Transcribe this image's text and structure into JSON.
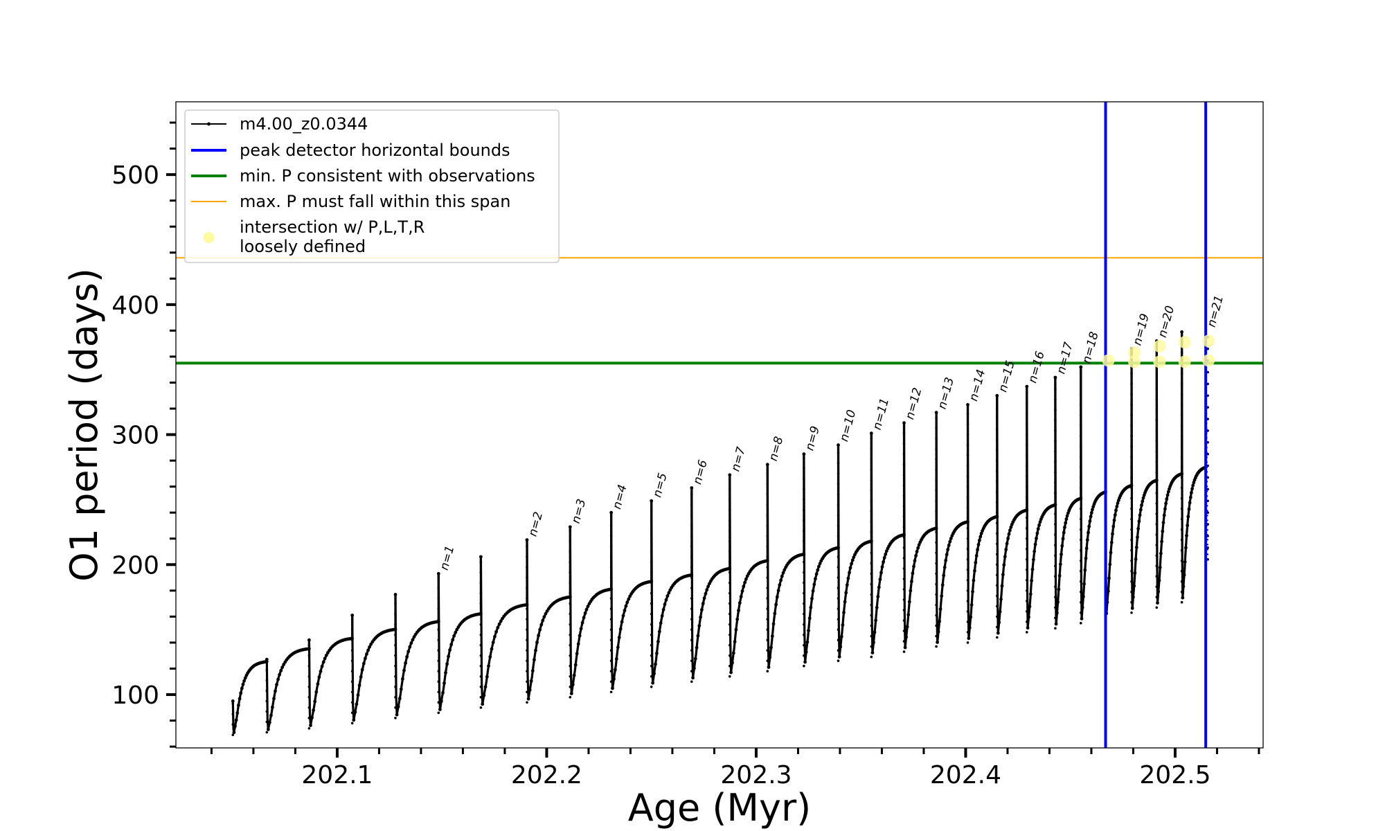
{
  "chart_data": {
    "type": "line",
    "xlabel": "Age (Myr)",
    "ylabel": "O1 period (days)",
    "xlim": [
      202.023,
      202.542
    ],
    "ylim": [
      59,
      556
    ],
    "xticks": [
      {
        "value": 202.1,
        "label": "202.1"
      },
      {
        "value": 202.2,
        "label": "202.2"
      },
      {
        "value": 202.3,
        "label": "202.3"
      },
      {
        "value": 202.4,
        "label": "202.4"
      },
      {
        "value": 202.5,
        "label": "202.5"
      }
    ],
    "x_minor_step": 0.02,
    "yticks": [
      {
        "value": 100,
        "label": "100"
      },
      {
        "value": 200,
        "label": "200"
      },
      {
        "value": 300,
        "label": "300"
      },
      {
        "value": 400,
        "label": "400"
      },
      {
        "value": 500,
        "label": "500"
      }
    ],
    "y_minor_step": 20,
    "grid": false,
    "legend_position": "top-left",
    "series_color": "#000000",
    "legend": [
      {
        "label": "m4.00_z0.0344",
        "style": "line-marker",
        "color": "#000000"
      },
      {
        "label": "peak detector horizontal bounds",
        "style": "line",
        "color": "#0000ff"
      },
      {
        "label": "min. P consistent with observations",
        "style": "line",
        "color": "#008000"
      },
      {
        "label": "max. P must fall within this span",
        "style": "thin-line",
        "color": "#ffa500"
      },
      {
        "label": "intersection w/ P,L,T,R",
        "label2": "loosely defined",
        "style": "dot",
        "color": "#fffaa0"
      }
    ],
    "cycles": [
      {
        "start": 202.0502,
        "end": 202.0664,
        "trough": 69,
        "plateau": 126,
        "spike": 95
      },
      {
        "start": 202.0664,
        "end": 202.0866,
        "trough": 71,
        "plateau": 136,
        "spike": 127
      },
      {
        "start": 202.0866,
        "end": 202.1072,
        "trough": 74,
        "plateau": 144,
        "spike": 142
      },
      {
        "start": 202.1072,
        "end": 202.1278,
        "trough": 78,
        "plateau": 151,
        "spike": 161
      },
      {
        "start": 202.1278,
        "end": 202.1484,
        "trough": 82,
        "plateau": 157,
        "spike": 177
      },
      {
        "start": 202.1484,
        "end": 202.1686,
        "trough": 86,
        "plateau": 163,
        "spike": 193,
        "label": "n=1"
      },
      {
        "start": 202.1686,
        "end": 202.1906,
        "trough": 90,
        "plateau": 170,
        "spike": 206
      },
      {
        "start": 202.1906,
        "end": 202.2112,
        "trough": 94,
        "plateau": 176,
        "spike": 219,
        "label": "n=2"
      },
      {
        "start": 202.2112,
        "end": 202.2308,
        "trough": 98,
        "plateau": 182,
        "spike": 229,
        "label": "n=3"
      },
      {
        "start": 202.2308,
        "end": 202.25,
        "trough": 102,
        "plateau": 188,
        "spike": 240,
        "label": "n=4"
      },
      {
        "start": 202.25,
        "end": 202.2692,
        "trough": 106,
        "plateau": 193,
        "spike": 249,
        "label": "n=5"
      },
      {
        "start": 202.2692,
        "end": 202.2874,
        "trough": 110,
        "plateau": 198,
        "spike": 259,
        "label": "n=6"
      },
      {
        "start": 202.2874,
        "end": 202.3054,
        "trough": 114,
        "plateau": 204,
        "spike": 269,
        "label": "n=7"
      },
      {
        "start": 202.3054,
        "end": 202.3228,
        "trough": 118,
        "plateau": 209,
        "spike": 277,
        "label": "n=8"
      },
      {
        "start": 202.3228,
        "end": 202.3392,
        "trough": 122,
        "plateau": 214,
        "spike": 285,
        "label": "n=9"
      },
      {
        "start": 202.3392,
        "end": 202.355,
        "trough": 126,
        "plateau": 219,
        "spike": 292,
        "label": "n=10"
      },
      {
        "start": 202.355,
        "end": 202.3706,
        "trough": 129,
        "plateau": 224,
        "spike": 301,
        "label": "n=11"
      },
      {
        "start": 202.3706,
        "end": 202.386,
        "trough": 133,
        "plateau": 229,
        "spike": 309,
        "label": "n=12"
      },
      {
        "start": 202.386,
        "end": 202.401,
        "trough": 137,
        "plateau": 234,
        "spike": 317,
        "label": "n=13"
      },
      {
        "start": 202.401,
        "end": 202.415,
        "trough": 140,
        "plateau": 238,
        "spike": 323,
        "label": "n=14"
      },
      {
        "start": 202.415,
        "end": 202.4292,
        "trough": 144,
        "plateau": 243,
        "spike": 330,
        "label": "n=15"
      },
      {
        "start": 202.4292,
        "end": 202.4428,
        "trough": 148,
        "plateau": 247,
        "spike": 337,
        "label": "n=16"
      },
      {
        "start": 202.4428,
        "end": 202.455,
        "trough": 151,
        "plateau": 252,
        "spike": 344,
        "label": "n=17"
      },
      {
        "start": 202.455,
        "end": 202.4668,
        "trough": 155,
        "plateau": 257,
        "spike": 352,
        "label": "n=18"
      },
      {
        "start": 202.4668,
        "end": 202.4792,
        "trough": 159,
        "plateau": 262,
        "spike": 358
      },
      {
        "start": 202.4792,
        "end": 202.4912,
        "trough": 163,
        "plateau": 266,
        "spike": 366,
        "label": "n=19"
      },
      {
        "start": 202.4912,
        "end": 202.5032,
        "trough": 167,
        "plateau": 271,
        "spike": 372,
        "label": "n=20"
      },
      {
        "start": 202.5032,
        "end": 202.5146,
        "trough": 171,
        "plateau": 276,
        "spike": 379
      }
    ],
    "tail": {
      "start": 202.5146,
      "end": 202.5156,
      "spike": 380,
      "low": 204,
      "label": "n=21"
    },
    "peak_detector_bounds": [
      202.4668,
      202.5146
    ],
    "min_period_observed": 355,
    "max_period_span": 436,
    "intersections": [
      {
        "x": 202.4668,
        "y": 357
      },
      {
        "x": 202.4792,
        "y": 363
      },
      {
        "x": 202.4912,
        "y": 368
      },
      {
        "x": 202.5032,
        "y": 371
      },
      {
        "x": 202.5146,
        "y": 372
      },
      {
        "x": 202.4792,
        "y": 356
      },
      {
        "x": 202.4912,
        "y": 356
      },
      {
        "x": 202.5032,
        "y": 356
      },
      {
        "x": 202.5146,
        "y": 357
      }
    ]
  }
}
